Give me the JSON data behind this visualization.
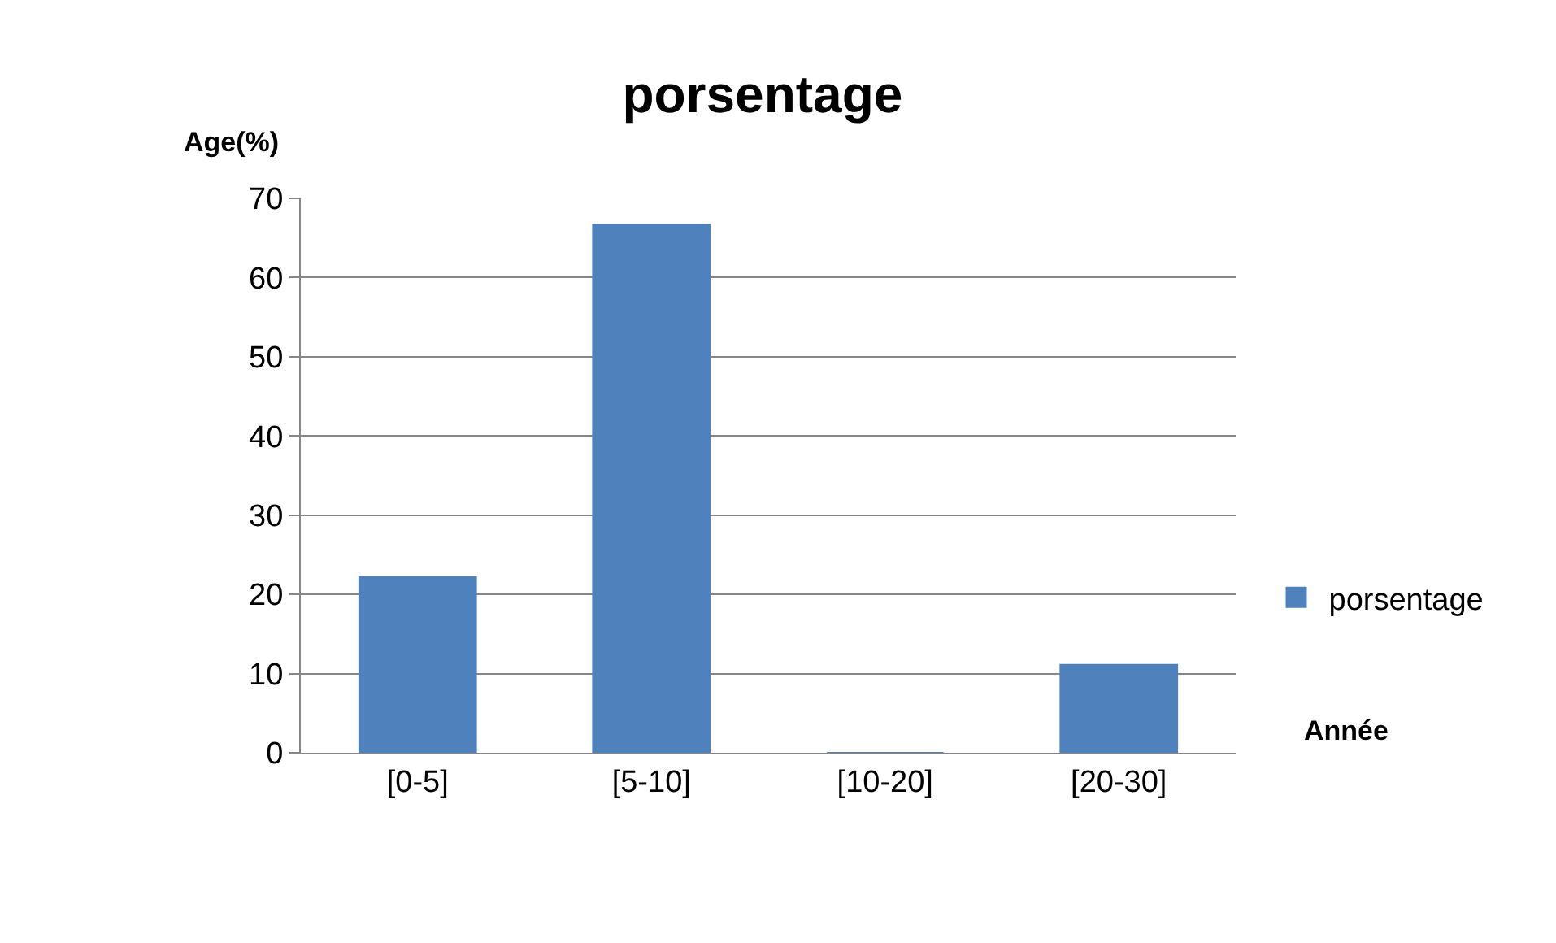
{
  "chart_data": {
    "type": "bar",
    "title": "porsentage",
    "xlabel": "Année",
    "ylabel": "Age(%)",
    "categories": [
      "[0-5]",
      "[5-10]",
      "[10-20]",
      "[20-30]"
    ],
    "series": [
      {
        "name": "porsentage",
        "color": "#4f81bd",
        "values": [
          22.2,
          66.7,
          0,
          11.1
        ]
      }
    ],
    "ylim": [
      0,
      70
    ],
    "yticks": [
      0,
      10,
      20,
      30,
      40,
      50,
      60,
      70
    ],
    "grid": "y",
    "legend": "right"
  }
}
